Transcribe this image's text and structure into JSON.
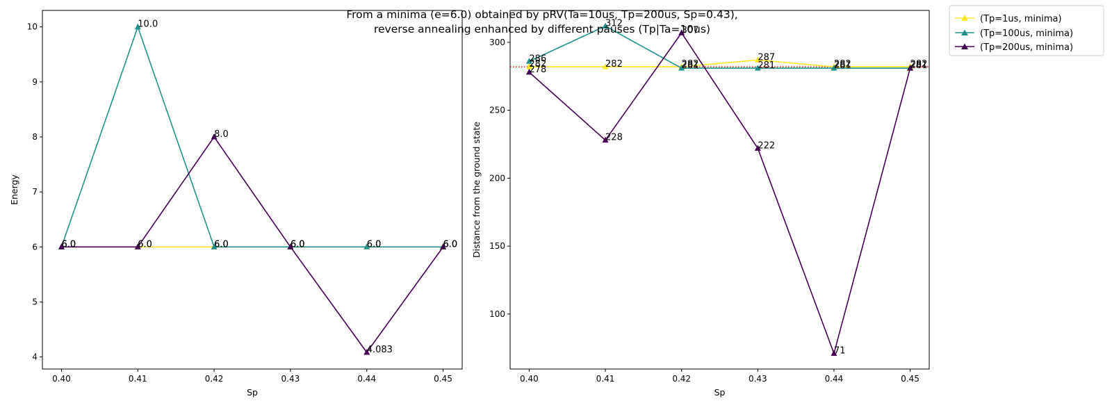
{
  "suptitle": {
    "line1": "From a minima (e=6.0) obtained by pRV(Ta=10us, Tp=200us, Sp=0.43),",
    "line2": "reverse annealing enhanced by different pauses (Tp|Ta=10us)"
  },
  "legend": {
    "placement": "outside upper right",
    "entries": [
      {
        "label": "(Tp=1us, minima)",
        "color": "#fde725",
        "marker": "triangle"
      },
      {
        "label": "(Tp=100us, minima)",
        "color": "#21918c",
        "marker": "triangle"
      },
      {
        "label": "(Tp=200us, minima)",
        "color": "#440154",
        "marker": "triangle"
      }
    ]
  },
  "chart_data": [
    {
      "type": "line",
      "xlabel": "Sp",
      "ylabel": "Energy",
      "x": [
        0.4,
        0.41,
        0.42,
        0.43,
        0.44,
        0.45
      ],
      "xticks": [
        "0.40",
        "0.41",
        "0.42",
        "0.43",
        "0.44",
        "0.45"
      ],
      "xlim": [
        0.3975,
        0.4525
      ],
      "ylim": [
        3.78,
        10.3
      ],
      "yticks": [
        "4",
        "5",
        "6",
        "7",
        "8",
        "9",
        "10"
      ],
      "grid": false,
      "series": [
        {
          "name": "(Tp=1us, minima)",
          "color": "#fde725",
          "values": [
            6.0,
            6.0,
            6.0,
            6.0,
            6.0,
            6.0
          ],
          "labels": [
            "6.0",
            "6.0",
            "6.0",
            "6.0",
            "6.0",
            "6.0"
          ]
        },
        {
          "name": "(Tp=100us, minima)",
          "color": "#21918c",
          "values": [
            6.0,
            10.0,
            6.0,
            6.0,
            6.0,
            6.0
          ],
          "labels": [
            "6.0",
            "10.0",
            "6.0",
            "6.0",
            "6.0",
            "6.0"
          ]
        },
        {
          "name": "(Tp=200us, minima)",
          "color": "#440154",
          "values": [
            6.0,
            6.0,
            8.0,
            6.0,
            4.083,
            6.0
          ],
          "labels": [
            "6.0",
            "6.0",
            "8.0",
            "6.0",
            "4.083",
            "6.0"
          ]
        }
      ]
    },
    {
      "type": "line",
      "xlabel": "Sp",
      "ylabel": "Distance from the ground state",
      "x": [
        0.4,
        0.41,
        0.42,
        0.43,
        0.44,
        0.45
      ],
      "xticks": [
        "0.40",
        "0.41",
        "0.42",
        "0.43",
        "0.44",
        "0.45"
      ],
      "xlim": [
        0.3975,
        0.4525
      ],
      "ylim": [
        59.5,
        323.5
      ],
      "yticks": [
        "100",
        "150",
        "200",
        "250",
        "300"
      ],
      "grid": false,
      "reference_line": {
        "value": 282,
        "color": "#ff0000",
        "style": "dotted"
      },
      "series": [
        {
          "name": "(Tp=1us, minima)",
          "color": "#fde725",
          "values": [
            282,
            282,
            282,
            287,
            282,
            282
          ],
          "labels": [
            "282",
            "282",
            "282",
            "287",
            "282",
            "282"
          ]
        },
        {
          "name": "(Tp=100us, minima)",
          "color": "#21918c",
          "values": [
            286,
            312,
            281,
            281,
            281,
            281
          ],
          "labels": [
            "286",
            "312",
            "281",
            "281",
            "281",
            "281"
          ]
        },
        {
          "name": "(Tp=200us, minima)",
          "color": "#440154",
          "values": [
            278,
            228,
            307,
            222,
            71,
            281
          ],
          "labels": [
            "278",
            "228",
            "307",
            "222",
            "71",
            "281"
          ]
        }
      ]
    }
  ]
}
